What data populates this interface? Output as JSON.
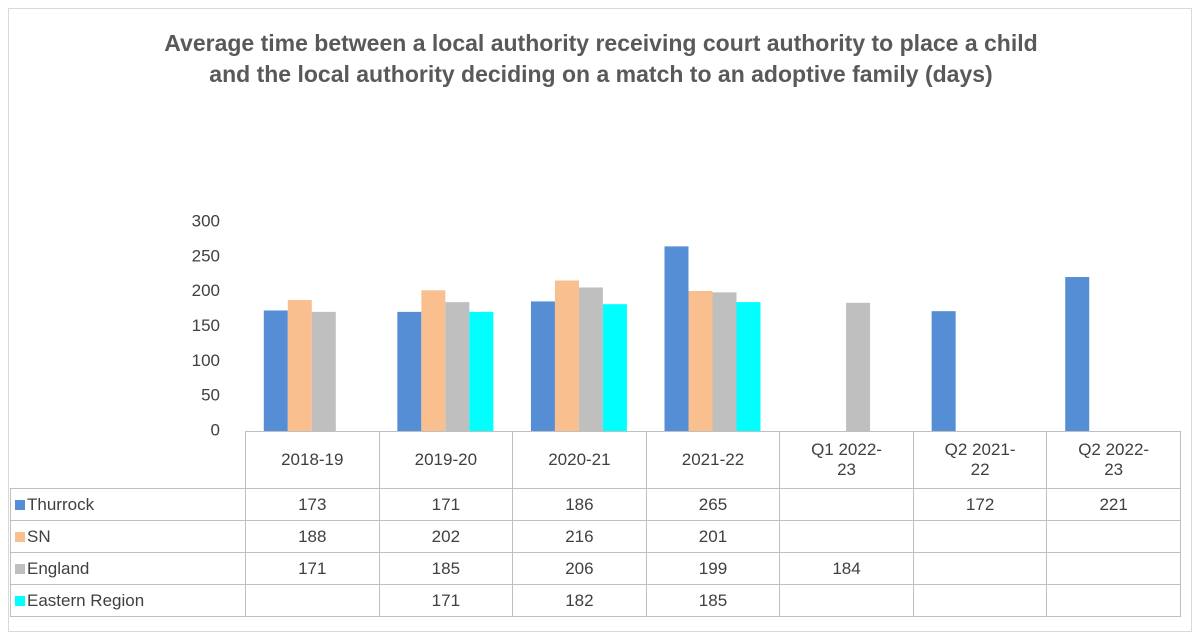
{
  "chart_data": {
    "type": "bar",
    "title": "Average time between a local authority receiving court authority to place a child and the local authority deciding on a match to an adoptive family (days)",
    "categories": [
      "2018-19",
      "2019-20",
      "2020-21",
      "2021-22",
      "Q1 2022-23",
      "Q2 2021-22",
      "Q2 2022-23"
    ],
    "series": [
      {
        "name": "Thurrock",
        "color": "#558ed5",
        "values": [
          173,
          171,
          186,
          265,
          null,
          172,
          221
        ]
      },
      {
        "name": "SN",
        "color": "#f9bf8f",
        "values": [
          188,
          202,
          216,
          201,
          null,
          null,
          null
        ]
      },
      {
        "name": "England",
        "color": "#bfbfbf",
        "values": [
          171,
          185,
          206,
          199,
          184,
          null,
          null
        ]
      },
      {
        "name": "Eastern Region",
        "color": "#00ffff",
        "values": [
          null,
          171,
          182,
          185,
          null,
          null,
          null
        ]
      }
    ],
    "ylim": [
      0,
      300
    ],
    "yticks": [
      0,
      50,
      100,
      150,
      200,
      250,
      300
    ],
    "grid": false,
    "legend": "table"
  }
}
